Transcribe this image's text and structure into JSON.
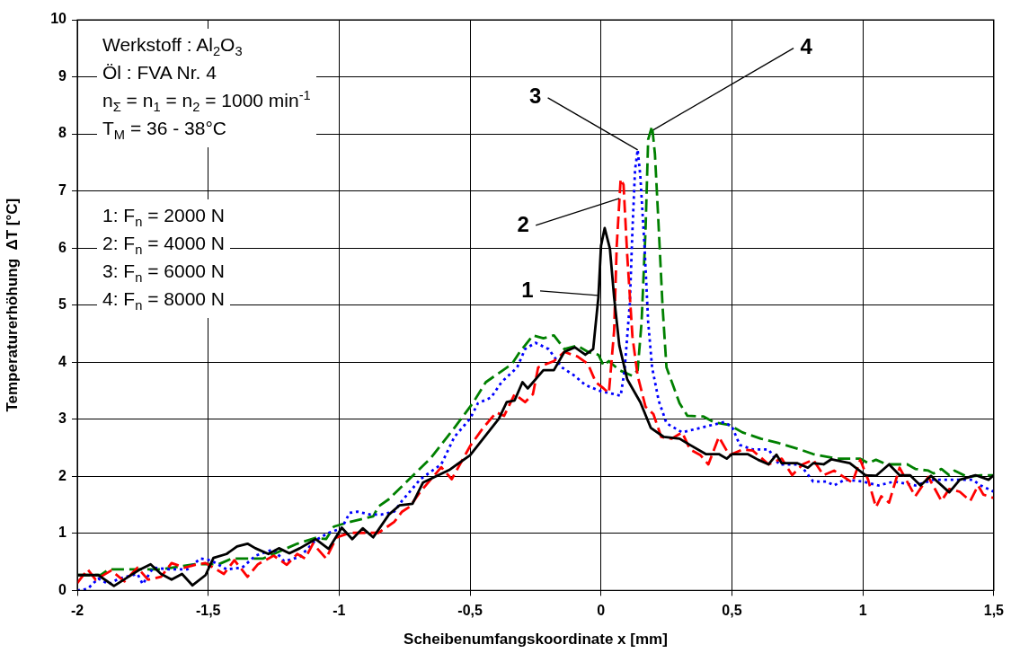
{
  "chart_data": {
    "type": "line",
    "xlabel": "Scheibenumfangskoordinate x [mm]",
    "ylabel": "Temperaturerhöhung  ΔT [°C]",
    "xlim": [
      -2,
      1.5
    ],
    "xticks": [
      -2,
      {
        "value": -1.5,
        "label": "-1,5"
      },
      -1,
      {
        "value": -0.5,
        "label": "-0,5"
      },
      0,
      {
        "value": 0.5,
        "label": "0,5"
      },
      1,
      {
        "value": 1.5,
        "label": "1,5"
      }
    ],
    "ylim": [
      0,
      10
    ],
    "yticks": [
      0,
      1,
      2,
      3,
      4,
      5,
      6,
      7,
      8,
      9,
      10
    ],
    "grid": true,
    "legend": false,
    "marker": "none",
    "series": [
      {
        "color": "#000000",
        "line_style": "solid",
        "x": [
          -2.0,
          -1.92,
          -1.86,
          -1.76,
          -1.72,
          -1.68,
          -1.64,
          -1.6,
          -1.56,
          -1.51,
          -1.48,
          -1.43,
          -1.39,
          -1.35,
          -1.32,
          -1.27,
          -1.23,
          -1.19,
          -1.15,
          -1.09,
          -1.04,
          -0.99,
          -0.95,
          -0.91,
          -0.87,
          -0.81,
          -0.77,
          -0.72,
          -0.68,
          -0.58,
          -0.5,
          -0.39,
          -0.36,
          -0.33,
          -0.3,
          -0.28,
          -0.22,
          -0.18,
          -0.14,
          -0.1,
          -0.06,
          -0.03,
          -0.01,
          0.0,
          0.014,
          0.034,
          0.05,
          0.07,
          0.1,
          0.15,
          0.19,
          0.24,
          0.3,
          0.34,
          0.4,
          0.45,
          0.48,
          0.5,
          0.56,
          0.6,
          0.64,
          0.67,
          0.69,
          0.75,
          0.79,
          0.81,
          0.85,
          0.88,
          0.95,
          1.01,
          1.05,
          1.1,
          1.14,
          1.18,
          1.22,
          1.26,
          1.33,
          1.37,
          1.43,
          1.48,
          1.5
        ],
        "values": [
          0.27,
          0.27,
          0.08,
          0.37,
          0.46,
          0.29,
          0.19,
          0.29,
          0.09,
          0.27,
          0.57,
          0.64,
          0.77,
          0.82,
          0.74,
          0.64,
          0.74,
          0.65,
          0.74,
          0.9,
          0.73,
          1.1,
          0.9,
          1.09,
          0.93,
          1.33,
          1.49,
          1.52,
          1.89,
          2.11,
          2.37,
          3.01,
          3.3,
          3.33,
          3.65,
          3.54,
          3.86,
          3.86,
          4.18,
          4.26,
          4.13,
          4.23,
          5.14,
          6.04,
          6.35,
          5.99,
          5.14,
          4.29,
          3.7,
          3.3,
          2.85,
          2.69,
          2.66,
          2.55,
          2.39,
          2.39,
          2.31,
          2.39,
          2.39,
          2.29,
          2.21,
          2.38,
          2.23,
          2.23,
          2.15,
          2.23,
          2.21,
          2.3,
          2.23,
          2.02,
          2.01,
          2.21,
          2.02,
          2.02,
          1.84,
          2.01,
          1.72,
          1.94,
          2.02,
          1.94,
          2.02
        ]
      },
      {
        "color": "#ff0000",
        "line_style": "dashed",
        "x": [
          -2.0,
          -1.96,
          -1.93,
          -1.87,
          -1.82,
          -1.77,
          -1.73,
          -1.68,
          -1.64,
          -1.59,
          -1.55,
          -1.51,
          -1.44,
          -1.4,
          -1.35,
          -1.31,
          -1.25,
          -1.2,
          -1.16,
          -1.13,
          -1.1,
          -1.05,
          -1.01,
          -0.96,
          -0.85,
          -0.79,
          -0.76,
          -0.73,
          -0.69,
          -0.61,
          -0.57,
          -0.5,
          -0.45,
          -0.4,
          -0.37,
          -0.33,
          -0.29,
          -0.26,
          -0.24,
          -0.18,
          -0.14,
          -0.09,
          -0.05,
          -0.02,
          0.01,
          0.03,
          0.05,
          0.06,
          0.075,
          0.086,
          0.1,
          0.12,
          0.14,
          0.17,
          0.2,
          0.23,
          0.27,
          0.31,
          0.34,
          0.38,
          0.41,
          0.45,
          0.49,
          0.54,
          0.58,
          0.64,
          0.69,
          0.73,
          0.77,
          0.81,
          0.85,
          0.89,
          0.96,
          0.99,
          1.02,
          1.05,
          1.07,
          1.1,
          1.14,
          1.2,
          1.25,
          1.3,
          1.33,
          1.37,
          1.41,
          1.44,
          1.46,
          1.5
        ],
        "values": [
          0.13,
          0.37,
          0.19,
          0.35,
          0.16,
          0.4,
          0.19,
          0.24,
          0.48,
          0.4,
          0.45,
          0.48,
          0.29,
          0.53,
          0.24,
          0.46,
          0.61,
          0.45,
          0.64,
          0.56,
          0.82,
          0.56,
          0.93,
          1.01,
          1.01,
          1.2,
          1.38,
          1.47,
          1.73,
          2.16,
          1.95,
          2.53,
          2.85,
          3.12,
          3.06,
          3.44,
          3.3,
          3.44,
          3.91,
          4.02,
          4.18,
          4.1,
          3.97,
          3.65,
          3.54,
          3.46,
          4.55,
          6.04,
          7.21,
          7.11,
          5.88,
          4.45,
          3.76,
          3.22,
          3.09,
          2.69,
          2.66,
          2.77,
          2.47,
          2.37,
          2.21,
          2.69,
          2.37,
          2.47,
          2.45,
          2.21,
          2.31,
          2.02,
          2.21,
          2.29,
          2.02,
          2.1,
          1.89,
          2.29,
          1.94,
          1.46,
          1.65,
          1.54,
          2.15,
          1.65,
          1.99,
          1.57,
          1.78,
          1.73,
          1.57,
          1.84,
          1.68,
          1.62
        ]
      },
      {
        "color": "#0000ff",
        "line_style": "dotted",
        "x": [
          -2.0,
          -1.96,
          -1.92,
          -1.88,
          -1.84,
          -1.77,
          -1.75,
          -1.71,
          -1.65,
          -1.58,
          -1.53,
          -1.49,
          -1.43,
          -1.37,
          -1.32,
          -1.25,
          -1.21,
          -1.15,
          -1.09,
          -1.04,
          -0.99,
          -0.96,
          -0.93,
          -0.88,
          -0.84,
          -0.79,
          -0.76,
          -0.69,
          -0.61,
          -0.56,
          -0.5,
          -0.47,
          -0.42,
          -0.38,
          -0.32,
          -0.29,
          -0.25,
          -0.2,
          -0.15,
          -0.1,
          -0.06,
          0.0,
          0.05,
          0.075,
          0.09,
          0.11,
          0.12,
          0.13,
          0.14,
          0.15,
          0.166,
          0.18,
          0.195,
          0.22,
          0.25,
          0.31,
          0.38,
          0.47,
          0.5,
          0.53,
          0.58,
          0.64,
          0.68,
          0.76,
          0.81,
          0.86,
          0.89,
          0.93,
          1.0,
          1.06,
          1.12,
          1.2,
          1.27,
          1.34,
          1.42,
          1.45,
          1.5
        ],
        "values": [
          0,
          0.03,
          0.21,
          0.11,
          0.21,
          0.29,
          0.11,
          0.4,
          0.37,
          0.37,
          0.56,
          0.53,
          0.37,
          0.4,
          0.61,
          0.72,
          0.51,
          0.59,
          0.88,
          1.01,
          1.09,
          1.36,
          1.38,
          1.33,
          1.33,
          1.38,
          1.57,
          1.95,
          2.21,
          2.69,
          3.01,
          3.28,
          3.38,
          3.65,
          3.91,
          4.23,
          4.34,
          4.23,
          3.91,
          3.76,
          3.6,
          3.49,
          3.44,
          3.41,
          3.86,
          5.03,
          6.31,
          7.37,
          7.72,
          7.27,
          6.04,
          4.71,
          3.91,
          3.33,
          2.93,
          2.77,
          2.85,
          2.95,
          2.87,
          2.55,
          2.47,
          2.47,
          2.21,
          2.21,
          1.91,
          1.91,
          1.84,
          1.94,
          1.91,
          1.84,
          1.91,
          1.84,
          1.94,
          1.94,
          1.94,
          1.84,
          1.73
        ]
      },
      {
        "color": "#008000",
        "line_style": "dashed",
        "x": [
          -2.0,
          -1.91,
          -1.88,
          -1.68,
          -1.55,
          -1.46,
          -1.41,
          -1.29,
          -1.25,
          -1.16,
          -1.09,
          -1.05,
          -1.02,
          -0.96,
          -0.87,
          -0.85,
          -0.81,
          -0.71,
          -0.65,
          -0.56,
          -0.49,
          -0.44,
          -0.34,
          -0.31,
          -0.26,
          -0.22,
          -0.18,
          -0.14,
          -0.09,
          -0.05,
          -0.01,
          0.01,
          0.03,
          0.07,
          0.12,
          0.14,
          0.155,
          0.17,
          0.18,
          0.195,
          0.206,
          0.218,
          0.235,
          0.25,
          0.3,
          0.33,
          0.39,
          0.43,
          0.49,
          0.54,
          0.61,
          0.68,
          0.76,
          0.81,
          0.9,
          0.99,
          1.02,
          1.05,
          1.09,
          1.17,
          1.2,
          1.25,
          1.27,
          1.3,
          1.33,
          1.35,
          1.4,
          1.45,
          1.5
        ],
        "values": [
          0.27,
          0.27,
          0.37,
          0.37,
          0.46,
          0.46,
          0.56,
          0.56,
          0.64,
          0.82,
          0.92,
          0.9,
          1.12,
          1.2,
          1.3,
          1.47,
          1.6,
          2.05,
          2.32,
          2.85,
          3.28,
          3.65,
          3.97,
          4.18,
          4.47,
          4.42,
          4.47,
          4.23,
          4.29,
          4.18,
          4.13,
          3.94,
          4.02,
          3.86,
          3.76,
          3.86,
          4.71,
          6.31,
          7.9,
          8.14,
          7.64,
          6.57,
          4.98,
          3.91,
          3.28,
          3.06,
          3.05,
          2.95,
          2.9,
          2.77,
          2.66,
          2.58,
          2.47,
          2.39,
          2.31,
          2.31,
          2.23,
          2.29,
          2.21,
          2.21,
          2.13,
          2.1,
          2.05,
          2.13,
          2.02,
          2.1,
          1.99,
          2.02,
          2.02
        ]
      }
    ],
    "annotations": [
      "Werkstoff : Al$_{2}$O$_{3}$",
      "Öl : FVA Nr. 4",
      "n$_{Σ}$  = n$_{1}$ = n$_{2}$ = 1000 min$^{-1}$",
      "T$_{M}$ = 36 - 38°C",
      "1: F$_{n}$ = 2000 N",
      "2: F$_{n}$ = 4000 N",
      "3: F$_{n}$ = 6000 N",
      "4: F$_{n}$ = 8000 N",
      {
        "text": "1",
        "x": -0.013,
        "y": 5.17
      },
      {
        "text": "2",
        "x": 0.07,
        "y": 6.87
      },
      {
        "text": "3",
        "x": 0.14,
        "y": 7.72
      },
      {
        "text": "4",
        "x": 0.2,
        "y": 8.07
      }
    ]
  }
}
